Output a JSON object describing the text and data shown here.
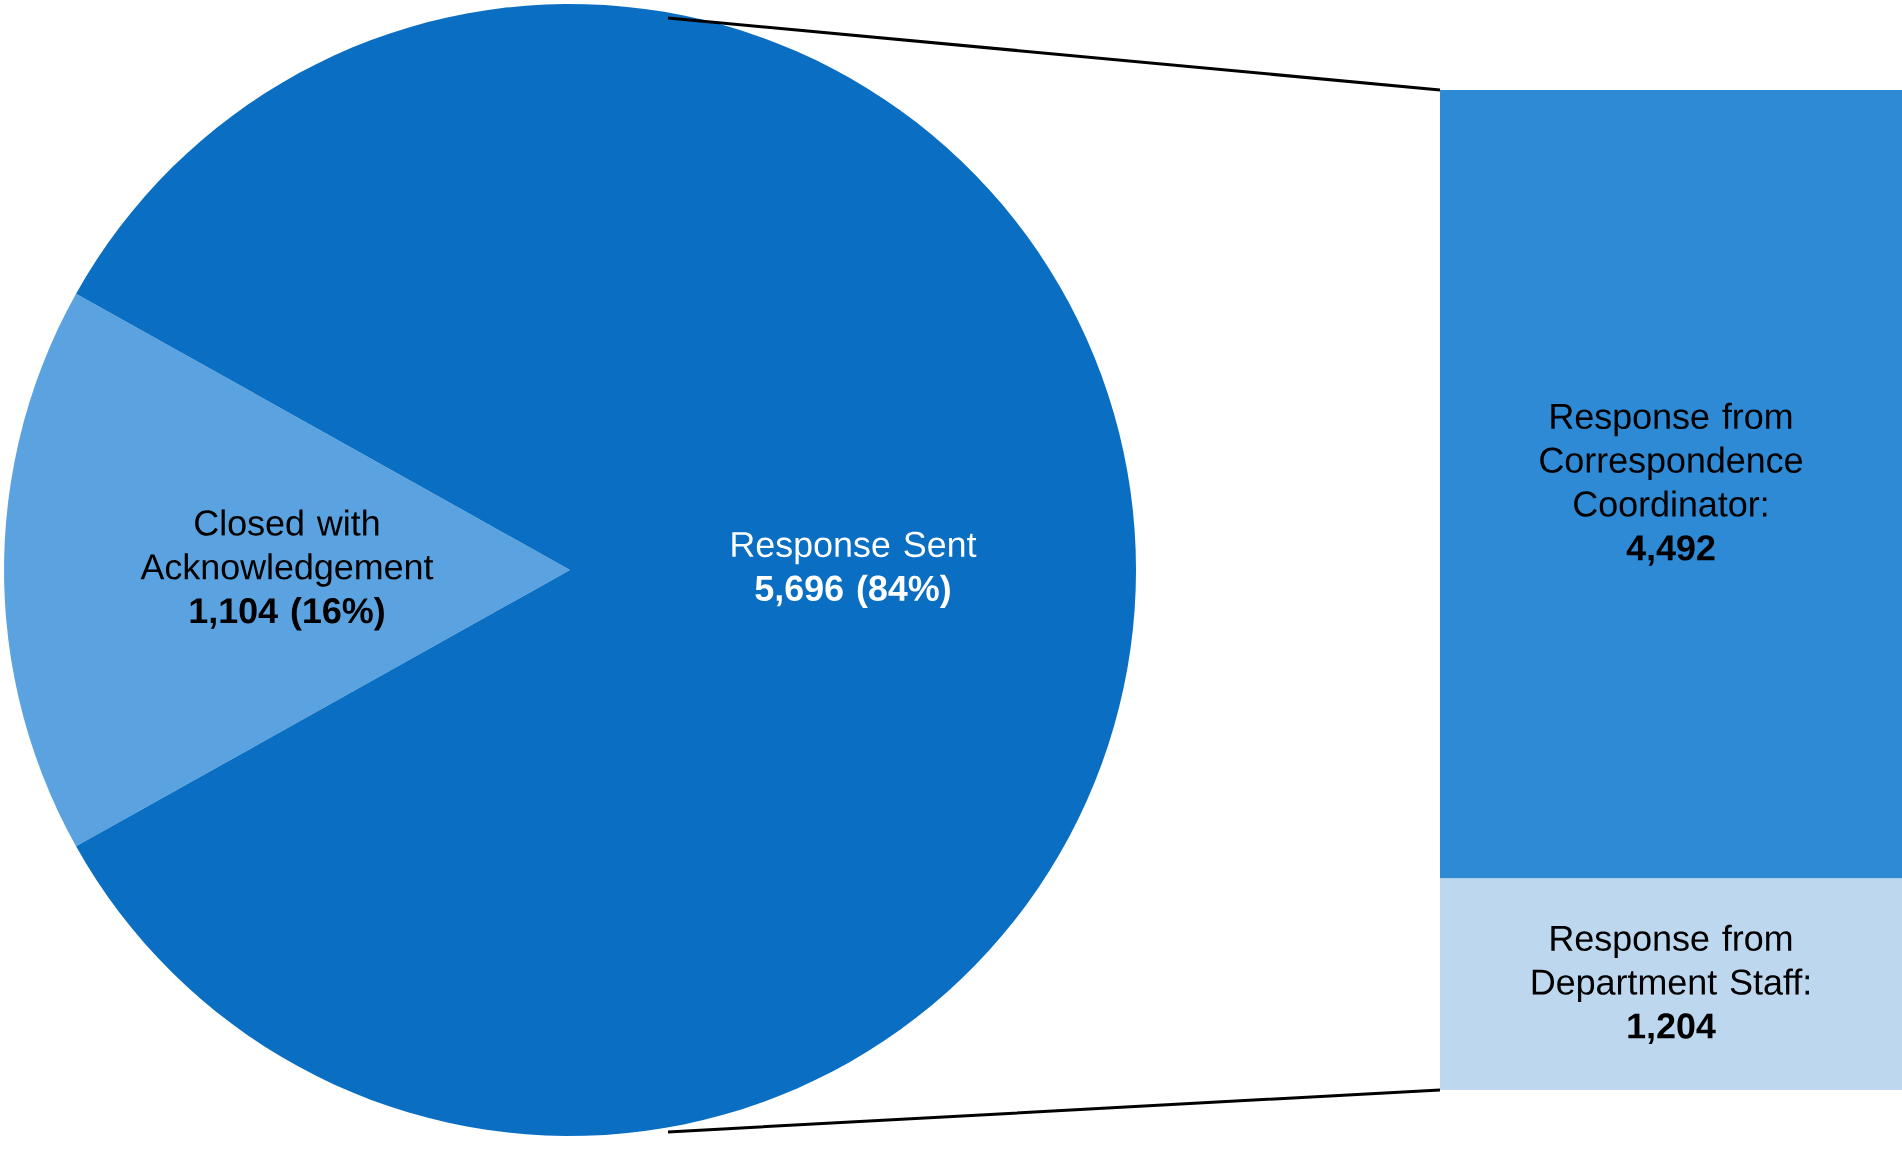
{
  "chart_data": [
    {
      "type": "pie",
      "categories": [
        "Closed with Acknowledgement",
        "Response Sent"
      ],
      "values": [
        1104,
        5696
      ],
      "colors": [
        "#5ba3e0",
        "#0a6fc2"
      ],
      "value_labels": [
        "1,104 (16%)",
        "5,696  (84%)"
      ]
    },
    {
      "type": "bar",
      "stacked": true,
      "categories": [
        null
      ],
      "series": [
        {
          "name": "Response from Department Staff:",
          "color": "#bdd7ee",
          "values": [
            1204
          ],
          "value_labels": [
            "1,204"
          ]
        },
        {
          "name": "Response from Correspondence Coordinator:",
          "color": "#2e8ad4",
          "values": [
            4492
          ],
          "value_labels": [
            "4,492"
          ]
        }
      ]
    }
  ]
}
